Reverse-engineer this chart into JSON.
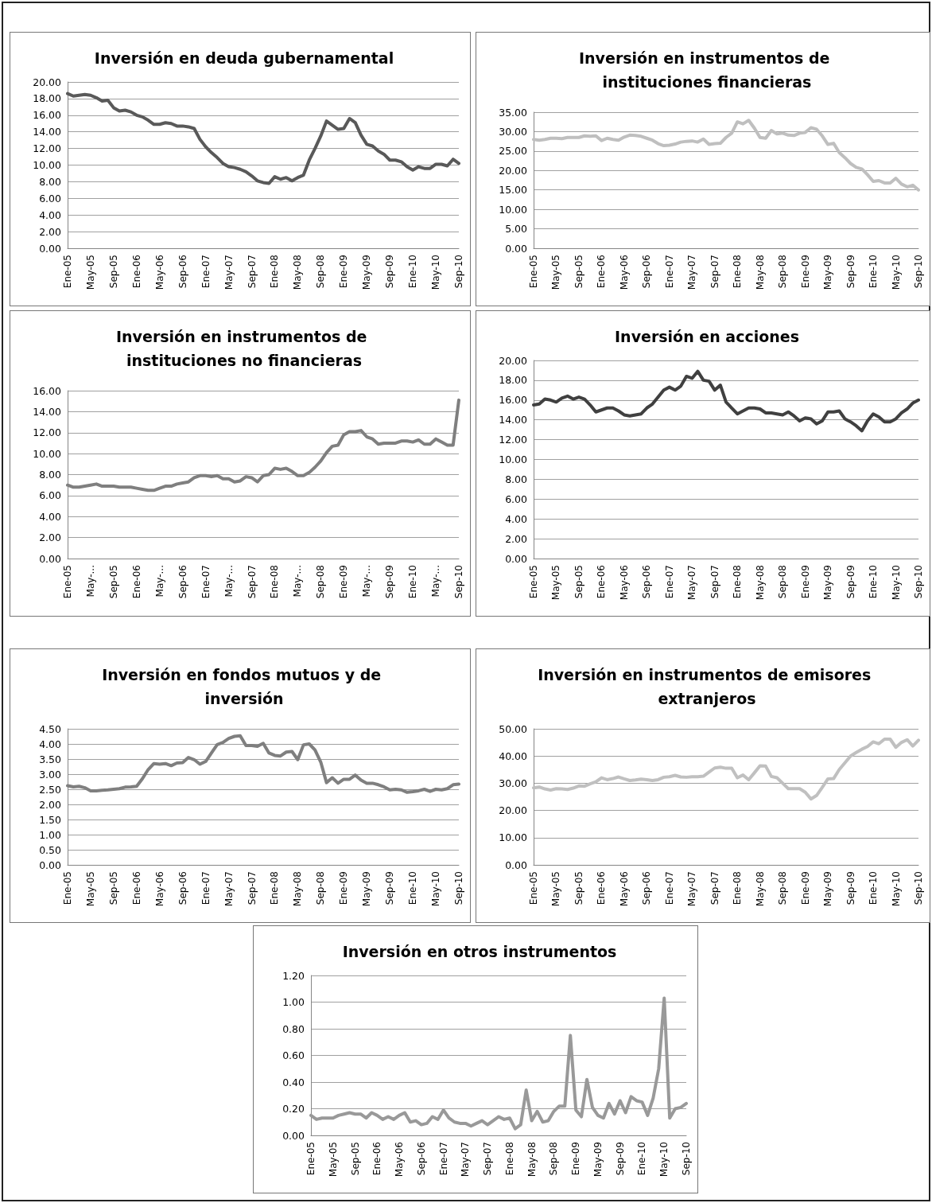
{
  "chart_data": [
    {
      "type": "line",
      "title": "Inversión en deuda gubernamental",
      "categories": [
        "Ene-05",
        null,
        null,
        null,
        "May-05",
        null,
        null,
        null,
        "Sep-05",
        null,
        null,
        null,
        "Ene-06",
        null,
        null,
        null,
        "May-06",
        null,
        null,
        null,
        "Sep-06",
        null,
        null,
        null,
        "Ene-07",
        null,
        null,
        null,
        "May-07",
        null,
        null,
        null,
        "Sep-07",
        null,
        null,
        null,
        "Ene-08",
        null,
        null,
        null,
        "May-08",
        null,
        null,
        null,
        "Sep-08",
        null,
        null,
        null,
        "Ene-09",
        null,
        null,
        null,
        "May-09",
        null,
        null,
        null,
        "Sep-09",
        null,
        null,
        null,
        "Ene-10",
        null,
        null,
        null,
        "May-10",
        null,
        null,
        null,
        "Sep-10"
      ],
      "series": [
        {
          "color": "#595959",
          "values": [
            18.6,
            18.3,
            18.4,
            18.5,
            18.4,
            18.1,
            17.7,
            17.8,
            16.9,
            16.5,
            16.6,
            16.4,
            16.0,
            15.8,
            15.4,
            14.9,
            14.9,
            15.1,
            15.0,
            14.7,
            14.7,
            14.6,
            14.4,
            13.1,
            12.2,
            11.5,
            10.9,
            10.2,
            9.8,
            9.7,
            9.5,
            9.2,
            8.7,
            8.1,
            7.9,
            7.8,
            8.6,
            8.3,
            8.5,
            8.1,
            8.5,
            8.8,
            10.6,
            12.0,
            13.5,
            15.3,
            14.8,
            14.3,
            14.4,
            15.6,
            15.1,
            13.6,
            12.5,
            12.3,
            11.7,
            11.3,
            10.6,
            10.6,
            10.4,
            9.8,
            9.4,
            9.8,
            9.6,
            9.6,
            10.1,
            10.1,
            9.9,
            10.7,
            10.2
          ]
        }
      ],
      "ylim": [
        0,
        20
      ],
      "yticks": [
        {
          "value": 0,
          "label": "0.00"
        },
        {
          "value": 2,
          "label": "2.00"
        },
        {
          "value": 4,
          "label": "4.00"
        },
        {
          "value": 6,
          "label": "6.00"
        },
        {
          "value": 8,
          "label": "8.00"
        },
        {
          "value": 10,
          "label": "10.00"
        },
        {
          "value": 12,
          "label": "12.00"
        },
        {
          "value": 14,
          "label": "14.00"
        },
        {
          "value": 16,
          "label": "16.00"
        },
        {
          "value": 18,
          "label": "18.00"
        },
        {
          "value": 20,
          "label": "20.00"
        }
      ],
      "grid": "y",
      "marker": "none",
      "line_style": "solid"
    },
    {
      "type": "line",
      "title": "Inversión en instrumentos de instituciones financieras",
      "categories": [
        "Ene-05",
        null,
        null,
        null,
        "May-05",
        null,
        null,
        null,
        "Sep-05",
        null,
        null,
        null,
        "Ene-06",
        null,
        null,
        null,
        "May-06",
        null,
        null,
        null,
        "Sep-06",
        null,
        null,
        null,
        "Ene-07",
        null,
        null,
        null,
        "May-07",
        null,
        null,
        null,
        "Sep-07",
        null,
        null,
        null,
        "Ene-08",
        null,
        null,
        null,
        "May-08",
        null,
        null,
        null,
        "Sep-08",
        null,
        null,
        null,
        "Ene-09",
        null,
        null,
        null,
        "May-09",
        null,
        null,
        null,
        "Sep-09",
        null,
        null,
        null,
        "Ene-10",
        null,
        null,
        null,
        "May-10",
        null,
        null,
        null,
        "Sep-10"
      ],
      "series": [
        {
          "color": "#bfbfbf",
          "values": [
            28.0,
            27.8,
            28.0,
            28.3,
            28.3,
            28.2,
            28.5,
            28.5,
            28.5,
            28.9,
            28.8,
            28.9,
            27.7,
            28.3,
            28.0,
            27.8,
            28.6,
            29.1,
            29.0,
            28.8,
            28.3,
            27.8,
            26.9,
            26.4,
            26.5,
            26.8,
            27.3,
            27.5,
            27.6,
            27.3,
            28.1,
            26.7,
            26.9,
            27.0,
            28.5,
            29.6,
            32.5,
            32.0,
            32.9,
            30.9,
            28.5,
            28.3,
            30.3,
            29.4,
            29.6,
            29.1,
            29.0,
            29.6,
            29.8,
            31.0,
            30.6,
            28.9,
            26.7,
            27.0,
            24.6,
            23.3,
            21.8,
            20.8,
            20.4,
            18.9,
            17.2,
            17.4,
            16.8,
            16.8,
            18.0,
            16.5,
            15.8,
            16.2,
            15.0
          ]
        }
      ],
      "ylim": [
        0,
        35
      ],
      "yticks": [
        {
          "value": 0,
          "label": "0.00"
        },
        {
          "value": 5,
          "label": "5.00"
        },
        {
          "value": 10,
          "label": "10.00"
        },
        {
          "value": 15,
          "label": "15.00"
        },
        {
          "value": 20,
          "label": "20.00"
        },
        {
          "value": 25,
          "label": "25.00"
        },
        {
          "value": 30,
          "label": "30.00"
        },
        {
          "value": 35,
          "label": "35.00"
        }
      ],
      "grid": "y",
      "marker": "none",
      "line_style": "solid"
    },
    {
      "type": "line",
      "title": "Inversión en instrumentos de instituciones no financieras",
      "categories": [
        "Ene-05",
        null,
        null,
        null,
        "May-...",
        null,
        null,
        null,
        "Sep-05",
        null,
        null,
        null,
        "Ene-06",
        null,
        null,
        null,
        "May-...",
        null,
        null,
        null,
        "Sep-06",
        null,
        null,
        null,
        "Ene-07",
        null,
        null,
        null,
        "May-...",
        null,
        null,
        null,
        "Sep-07",
        null,
        null,
        null,
        "Ene-08",
        null,
        null,
        null,
        "May-...",
        null,
        null,
        null,
        "Sep-08",
        null,
        null,
        null,
        "Ene-09",
        null,
        null,
        null,
        "May-...",
        null,
        null,
        null,
        "Sep-09",
        null,
        null,
        null,
        "Ene-10",
        null,
        null,
        null,
        "May-...",
        null,
        null,
        null,
        "Sep-10"
      ],
      "series": [
        {
          "color": "#7f7f7f",
          "values": [
            7.0,
            6.8,
            6.8,
            6.9,
            7.0,
            7.1,
            6.9,
            6.9,
            6.9,
            6.8,
            6.8,
            6.8,
            6.7,
            6.6,
            6.5,
            6.5,
            6.7,
            6.9,
            6.9,
            7.1,
            7.2,
            7.3,
            7.7,
            7.9,
            7.9,
            7.8,
            7.9,
            7.6,
            7.6,
            7.3,
            7.4,
            7.8,
            7.7,
            7.3,
            7.9,
            8.0,
            8.6,
            8.5,
            8.6,
            8.3,
            7.9,
            7.9,
            8.2,
            8.7,
            9.3,
            10.1,
            10.7,
            10.8,
            11.8,
            12.1,
            12.1,
            12.2,
            11.6,
            11.4,
            10.9,
            11.0,
            11.0,
            11.0,
            11.2,
            11.2,
            11.1,
            11.3,
            10.9,
            10.9,
            11.4,
            11.1,
            10.8,
            10.8,
            15.1
          ]
        }
      ],
      "ylim": [
        0,
        16
      ],
      "yticks": [
        {
          "value": 0,
          "label": "0.00"
        },
        {
          "value": 2,
          "label": "2.00"
        },
        {
          "value": 4,
          "label": "4.00"
        },
        {
          "value": 6,
          "label": "6.00"
        },
        {
          "value": 8,
          "label": "8.00"
        },
        {
          "value": 10,
          "label": "10.00"
        },
        {
          "value": 12,
          "label": "12.00"
        },
        {
          "value": 14,
          "label": "14.00"
        },
        {
          "value": 16,
          "label": "16.00"
        }
      ],
      "grid": "y",
      "marker": "none",
      "line_style": "solid"
    },
    {
      "type": "line",
      "title": "Inversión en acciones",
      "categories": [
        "Ene-05",
        null,
        null,
        null,
        "May-05",
        null,
        null,
        null,
        "Sep-05",
        null,
        null,
        null,
        "Ene-06",
        null,
        null,
        null,
        "May-06",
        null,
        null,
        null,
        "Sep-06",
        null,
        null,
        null,
        "Ene-07",
        null,
        null,
        null,
        "May-07",
        null,
        null,
        null,
        "Sep-07",
        null,
        null,
        null,
        "Ene-08",
        null,
        null,
        null,
        "May-08",
        null,
        null,
        null,
        "Sep-08",
        null,
        null,
        null,
        "Ene-09",
        null,
        null,
        null,
        "May-09",
        null,
        null,
        null,
        "Sep-09",
        null,
        null,
        null,
        "Ene-10",
        null,
        null,
        null,
        "May-10",
        null,
        null,
        null,
        "Sep-10"
      ],
      "series": [
        {
          "color": "#404040",
          "values": [
            15.5,
            15.6,
            16.1,
            16.0,
            15.8,
            16.2,
            16.4,
            16.1,
            16.3,
            16.1,
            15.5,
            14.8,
            15.0,
            15.2,
            15.2,
            14.9,
            14.5,
            14.4,
            14.5,
            14.6,
            15.2,
            15.6,
            16.3,
            17.0,
            17.3,
            17.0,
            17.4,
            18.4,
            18.2,
            18.9,
            18.0,
            17.9,
            17.0,
            17.5,
            15.8,
            15.2,
            14.6,
            14.9,
            15.2,
            15.2,
            15.1,
            14.7,
            14.7,
            14.6,
            14.5,
            14.8,
            14.4,
            13.9,
            14.2,
            14.1,
            13.6,
            13.9,
            14.8,
            14.8,
            14.9,
            14.1,
            13.8,
            13.4,
            12.9,
            13.9,
            14.6,
            14.3,
            13.8,
            13.8,
            14.1,
            14.7,
            15.1,
            15.7,
            16.0
          ]
        }
      ],
      "ylim": [
        0,
        20
      ],
      "yticks": [
        {
          "value": 0,
          "label": "0.00"
        },
        {
          "value": 2,
          "label": "2.00"
        },
        {
          "value": 4,
          "label": "4.00"
        },
        {
          "value": 6,
          "label": "6.00"
        },
        {
          "value": 8,
          "label": "8.00"
        },
        {
          "value": 10,
          "label": "10.00"
        },
        {
          "value": 12,
          "label": "12.00"
        },
        {
          "value": 14,
          "label": "14.00"
        },
        {
          "value": 16,
          "label": "16.00"
        },
        {
          "value": 18,
          "label": "18.00"
        },
        {
          "value": 20,
          "label": "20.00"
        }
      ],
      "grid": "y",
      "marker": "none",
      "line_style": "solid"
    },
    {
      "type": "line",
      "title": "Inversión en fondos mutuos y de inversión",
      "categories": [
        "Ene-05",
        null,
        null,
        null,
        "May-05",
        null,
        null,
        null,
        "Sep-05",
        null,
        null,
        null,
        "Ene-06",
        null,
        null,
        null,
        "May-06",
        null,
        null,
        null,
        "Sep-06",
        null,
        null,
        null,
        "Ene-07",
        null,
        null,
        null,
        "May-07",
        null,
        null,
        null,
        "Sep-07",
        null,
        null,
        null,
        "Ene-08",
        null,
        null,
        null,
        "May-08",
        null,
        null,
        null,
        "Sep-08",
        null,
        null,
        null,
        "Ene-09",
        null,
        null,
        null,
        "May-09",
        null,
        null,
        null,
        "Sep-09",
        null,
        null,
        null,
        "Ene-10",
        null,
        null,
        null,
        "May-10",
        null,
        null,
        null,
        "Sep-10"
      ],
      "series": [
        {
          "color": "#7f7f7f",
          "values": [
            2.62,
            2.58,
            2.6,
            2.55,
            2.45,
            2.45,
            2.47,
            2.48,
            2.5,
            2.52,
            2.57,
            2.58,
            2.6,
            2.85,
            3.15,
            3.35,
            3.33,
            3.35,
            3.28,
            3.37,
            3.38,
            3.55,
            3.48,
            3.33,
            3.42,
            3.7,
            3.98,
            4.05,
            4.18,
            4.25,
            4.27,
            3.95,
            3.95,
            3.92,
            4.02,
            3.7,
            3.62,
            3.6,
            3.73,
            3.75,
            3.48,
            3.97,
            4.0,
            3.8,
            3.4,
            2.72,
            2.88,
            2.7,
            2.83,
            2.83,
            2.97,
            2.8,
            2.7,
            2.7,
            2.65,
            2.58,
            2.48,
            2.5,
            2.48,
            2.4,
            2.42,
            2.45,
            2.5,
            2.43,
            2.5,
            2.48,
            2.52,
            2.65,
            2.67
          ]
        }
      ],
      "ylim": [
        0,
        4.5
      ],
      "yticks": [
        {
          "value": 0,
          "label": "0.00"
        },
        {
          "value": 0.5,
          "label": "0.50"
        },
        {
          "value": 1,
          "label": "1.00"
        },
        {
          "value": 1.5,
          "label": "1.50"
        },
        {
          "value": 2,
          "label": "2.00"
        },
        {
          "value": 2.5,
          "label": "2.50"
        },
        {
          "value": 3,
          "label": "3.00"
        },
        {
          "value": 3.5,
          "label": "3.50"
        },
        {
          "value": 4,
          "label": "4.00"
        },
        {
          "value": 4.5,
          "label": "4.50"
        }
      ],
      "grid": "y",
      "marker": "none",
      "line_style": "solid"
    },
    {
      "type": "line",
      "title": "Inversión en instrumentos de emisores extranjeros",
      "categories": [
        "Ene-05",
        null,
        null,
        null,
        "May-05",
        null,
        null,
        null,
        "Sep-05",
        null,
        null,
        null,
        "Ene-06",
        null,
        null,
        null,
        "May-06",
        null,
        null,
        null,
        "Sep-06",
        null,
        null,
        null,
        "Ene-07",
        null,
        null,
        null,
        "May-07",
        null,
        null,
        null,
        "Sep-07",
        null,
        null,
        null,
        "Ene-08",
        null,
        null,
        null,
        "May-08",
        null,
        null,
        null,
        "Sep-08",
        null,
        null,
        null,
        "Ene-09",
        null,
        null,
        null,
        "May-09",
        null,
        null,
        null,
        "Sep-09",
        null,
        null,
        null,
        "Ene-10",
        null,
        null,
        null,
        "May-10",
        null,
        null,
        null,
        "Sep-10"
      ],
      "series": [
        {
          "color": "#c0c0c0",
          "values": [
            28.3,
            28.6,
            27.9,
            27.5,
            28.0,
            27.9,
            27.7,
            28.2,
            29.0,
            28.9,
            29.8,
            30.5,
            32.0,
            31.3,
            31.7,
            32.3,
            31.6,
            31.0,
            31.2,
            31.5,
            31.3,
            31.0,
            31.3,
            32.2,
            32.4,
            32.9,
            32.3,
            32.2,
            32.4,
            32.4,
            32.6,
            34.1,
            35.6,
            35.9,
            35.5,
            35.5,
            32.0,
            33.0,
            31.3,
            33.8,
            36.4,
            36.3,
            32.5,
            32.0,
            30.0,
            28.0,
            28.0,
            28.0,
            26.7,
            24.2,
            25.5,
            28.5,
            31.6,
            31.7,
            35.0,
            37.5,
            40.0,
            41.3,
            42.5,
            43.5,
            45.2,
            44.5,
            46.2,
            46.2,
            43.2,
            45.0,
            46.0,
            43.7,
            45.8
          ]
        }
      ],
      "ylim": [
        0,
        50
      ],
      "yticks": [
        {
          "value": 0,
          "label": "0.00"
        },
        {
          "value": 10,
          "label": "10.00"
        },
        {
          "value": 20,
          "label": "20.00"
        },
        {
          "value": 30,
          "label": "30.00"
        },
        {
          "value": 40,
          "label": "40.00"
        },
        {
          "value": 50,
          "label": "50.00"
        }
      ],
      "grid": "y",
      "marker": "none",
      "line_style": "solid"
    },
    {
      "type": "line",
      "title": "Inversión en otros instrumentos",
      "categories": [
        "Ene-05",
        null,
        null,
        null,
        "May-05",
        null,
        null,
        null,
        "Sep-05",
        null,
        null,
        null,
        "Ene-06",
        null,
        null,
        null,
        "May-06",
        null,
        null,
        null,
        "Sep-06",
        null,
        null,
        null,
        "Ene-07",
        null,
        null,
        null,
        "May-07",
        null,
        null,
        null,
        "Sep-07",
        null,
        null,
        null,
        "Ene-08",
        null,
        null,
        null,
        "May-08",
        null,
        null,
        null,
        "Sep-08",
        null,
        null,
        null,
        "Ene-09",
        null,
        null,
        null,
        "May-09",
        null,
        null,
        null,
        "Sep-09",
        null,
        null,
        null,
        "Ene-10",
        null,
        null,
        null,
        "May-10",
        null,
        null,
        null,
        "Sep-10"
      ],
      "series": [
        {
          "color": "#999999",
          "values": [
            0.15,
            0.12,
            0.13,
            0.13,
            0.13,
            0.15,
            0.16,
            0.17,
            0.16,
            0.16,
            0.13,
            0.17,
            0.15,
            0.12,
            0.14,
            0.12,
            0.15,
            0.17,
            0.1,
            0.11,
            0.08,
            0.09,
            0.14,
            0.12,
            0.19,
            0.13,
            0.1,
            0.09,
            0.09,
            0.07,
            0.09,
            0.11,
            0.08,
            0.11,
            0.14,
            0.12,
            0.13,
            0.05,
            0.08,
            0.34,
            0.11,
            0.18,
            0.1,
            0.11,
            0.18,
            0.22,
            0.22,
            0.75,
            0.19,
            0.14,
            0.42,
            0.21,
            0.15,
            0.13,
            0.24,
            0.16,
            0.26,
            0.17,
            0.29,
            0.26,
            0.25,
            0.15,
            0.28,
            0.5,
            1.03,
            0.13,
            0.2,
            0.21,
            0.24
          ]
        }
      ],
      "ylim": [
        0,
        1.2
      ],
      "yticks": [
        {
          "value": 0,
          "label": "0.00"
        },
        {
          "value": 0.2,
          "label": "0.20"
        },
        {
          "value": 0.4,
          "label": "0.40"
        },
        {
          "value": 0.6,
          "label": "0.60"
        },
        {
          "value": 0.8,
          "label": "0.80"
        },
        {
          "value": 1,
          "label": "1.00"
        },
        {
          "value": 1.2,
          "label": "1.20"
        }
      ],
      "grid": "y",
      "marker": "none",
      "line_style": "solid"
    }
  ]
}
